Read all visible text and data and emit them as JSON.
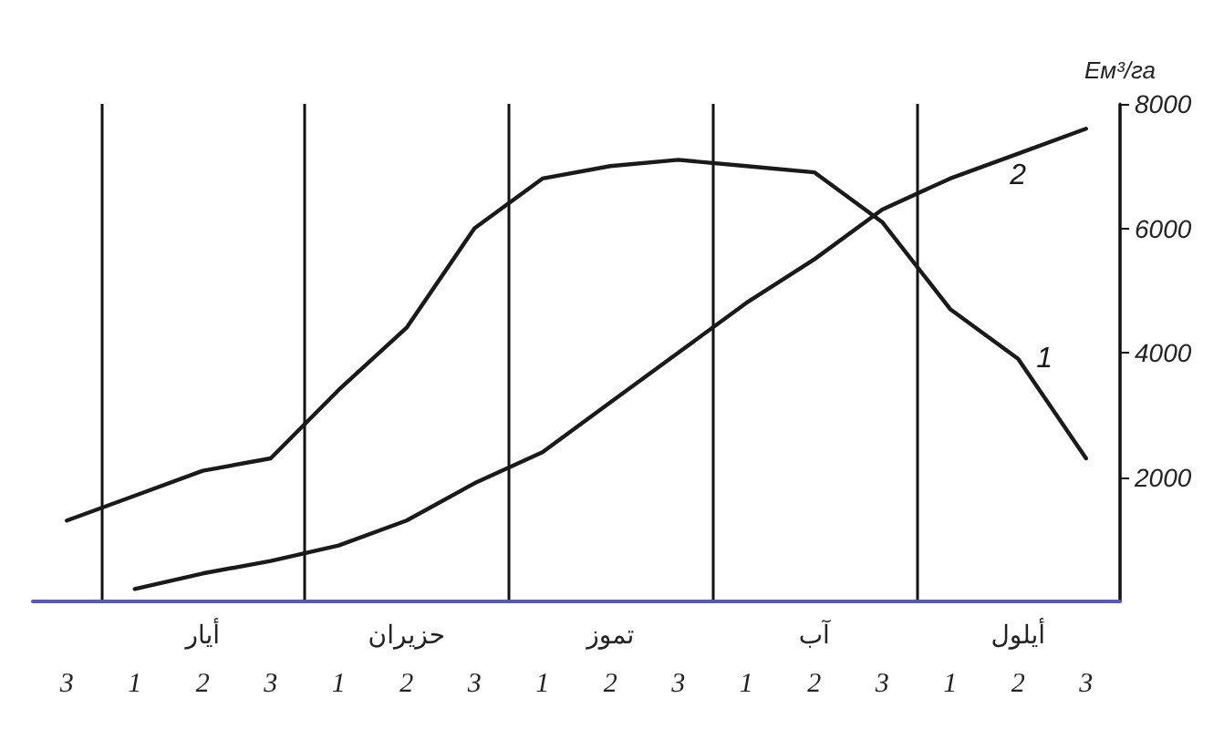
{
  "chart_data": {
    "type": "line",
    "ylabel": "Eм³/га",
    "categories": [
      "3",
      "1",
      "2",
      "3",
      "1",
      "2",
      "3",
      "1",
      "2",
      "3",
      "1",
      "2",
      "3",
      "1",
      "2",
      "3"
    ],
    "annotations": [
      "أيار",
      "حزيران",
      "تموز",
      "آب",
      "أيلول"
    ],
    "series": [
      {
        "name": "1",
        "color": "#1a1a1a",
        "values": [
          1300,
          1700,
          2100,
          2300,
          3400,
          4400,
          6000,
          6800,
          7000,
          7100,
          7000,
          6900,
          6100,
          4700,
          3900,
          2300
        ]
      },
      {
        "name": "2",
        "color": "#1a1a1a",
        "values": [
          null,
          200,
          450,
          650,
          900,
          1300,
          1900,
          2400,
          3200,
          4000,
          4800,
          5500,
          6300,
          6800,
          7200,
          7600
        ]
      }
    ],
    "ylim": [
      0,
      8000
    ],
    "yticks": [
      2000,
      4000,
      6000,
      8000
    ],
    "grid": "x",
    "legend": false,
    "marker": "none",
    "line_style": "solid"
  }
}
